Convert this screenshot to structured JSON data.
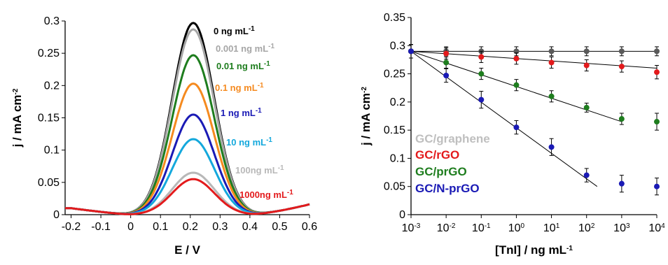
{
  "chart_data": [
    {
      "type": "line",
      "xlabel": "E / V",
      "ylabel": "j / mA cm",
      "ylabel_sup": "-2",
      "xlim": [
        -0.22,
        0.6
      ],
      "ylim": [
        0,
        0.3
      ],
      "x_ticks": [
        -0.2,
        -0.1,
        0,
        0.1,
        0.2,
        0.3,
        0.4,
        0.5,
        0.6
      ],
      "x_tick_labels": [
        "-0.2",
        "-0.1",
        "0",
        "0.1",
        "0.2",
        "0.3",
        "0.4",
        "0.5",
        "0.6"
      ],
      "y_ticks": [
        0,
        0.05,
        0.1,
        0.15,
        0.2,
        0.25,
        0.3
      ],
      "y_tick_labels": [
        "0",
        "0.05",
        "0.1",
        "0.15",
        "0.2",
        "0.25",
        "0.3"
      ],
      "grid": false,
      "series": [
        {
          "name": "0 ng mL",
          "sup": "-1",
          "color": "#000000",
          "peak": 0.297
        },
        {
          "name": "0.001 ng mL",
          "sup": "-1",
          "color": "#a6a6a6",
          "peak": 0.287
        },
        {
          "name": "0.01 ng mL",
          "sup": "-1",
          "color": "#1e7d1e",
          "peak": 0.247
        },
        {
          "name": "0.1 ng mL",
          "sup": "-1",
          "color": "#f58a1f",
          "peak": 0.203
        },
        {
          "name": "1 ng mL",
          "sup": "-1",
          "color": "#1a1ab5",
          "peak": 0.155
        },
        {
          "name": "10 ng mL",
          "sup": "-1",
          "color": "#14a8dc",
          "peak": 0.117
        },
        {
          "name": "100ng mL",
          "sup": "-1",
          "color": "#b8b8b8",
          "peak": 0.065
        },
        {
          "name": "1000ng mL",
          "sup": "-1",
          "color": "#e31a1c",
          "peak": 0.055
        }
      ]
    },
    {
      "type": "scatter",
      "xlabel": "[TnI] / ng mL",
      "xlabel_sup": "-1",
      "ylabel": "j / mA cm",
      "ylabel_sup": "-2",
      "xscale": "log",
      "xlim": [
        0.001,
        10000
      ],
      "ylim": [
        0,
        0.35
      ],
      "x_ticks": [
        0.001,
        0.01,
        0.1,
        1,
        10,
        100,
        1000,
        10000
      ],
      "x_tick_exponents": [
        "-3",
        "-2",
        "-1",
        "0",
        "1",
        "2",
        "3",
        "4"
      ],
      "y_ticks": [
        0,
        0.05,
        0.1,
        0.15,
        0.2,
        0.25,
        0.3,
        0.35
      ],
      "y_tick_labels": [
        "0",
        "0.05",
        "0.1",
        "0.15",
        "0.2",
        "0.25",
        "0.3",
        "0.35"
      ],
      "grid": false,
      "legend_position": "bottom-left",
      "x": [
        0.001,
        0.01,
        0.1,
        1,
        10,
        100,
        1000,
        10000
      ],
      "series": [
        {
          "name": "GC/graphene",
          "color": "#5a5a5a",
          "label_color": "#bfbfbf",
          "values": [
            0.29,
            0.29,
            0.29,
            0.29,
            0.29,
            0.29,
            0.29,
            0.29
          ],
          "errors": [
            0.012,
            0.008,
            0.008,
            0.008,
            0.008,
            0.008,
            0.008,
            0.008
          ],
          "fit": [
            [
              0.001,
              0.29
            ],
            [
              10000,
              0.29
            ]
          ]
        },
        {
          "name": "GC/rGO",
          "color": "#e31a1c",
          "label_color": "#e31a1c",
          "values": [
            0.29,
            0.286,
            0.28,
            0.277,
            0.27,
            0.265,
            0.263,
            0.253
          ],
          "errors": [
            0.012,
            0.01,
            0.01,
            0.01,
            0.01,
            0.01,
            0.01,
            0.012
          ],
          "fit": [
            [
              0.001,
              0.29
            ],
            [
              10000,
              0.26
            ]
          ]
        },
        {
          "name": "GC/prGO",
          "color": "#1e7d1e",
          "label_color": "#1e7d1e",
          "values": [
            0.29,
            0.27,
            0.25,
            0.23,
            0.21,
            0.19,
            0.17,
            0.165
          ],
          "errors": [
            0.012,
            0.01,
            0.01,
            0.01,
            0.01,
            0.008,
            0.01,
            0.015
          ],
          "fit": [
            [
              0.001,
              0.29
            ],
            [
              1000,
              0.165
            ]
          ]
        },
        {
          "name": "GC/N-prGO",
          "color": "#1a1ab5",
          "label_color": "#1a1ab5",
          "values": [
            0.29,
            0.247,
            0.204,
            0.155,
            0.12,
            0.07,
            0.055,
            0.05
          ],
          "errors": [
            0.012,
            0.012,
            0.015,
            0.012,
            0.015,
            0.012,
            0.015,
            0.015
          ],
          "fit": [
            [
              0.001,
              0.29
            ],
            [
              200,
              0.05
            ]
          ]
        }
      ]
    }
  ]
}
